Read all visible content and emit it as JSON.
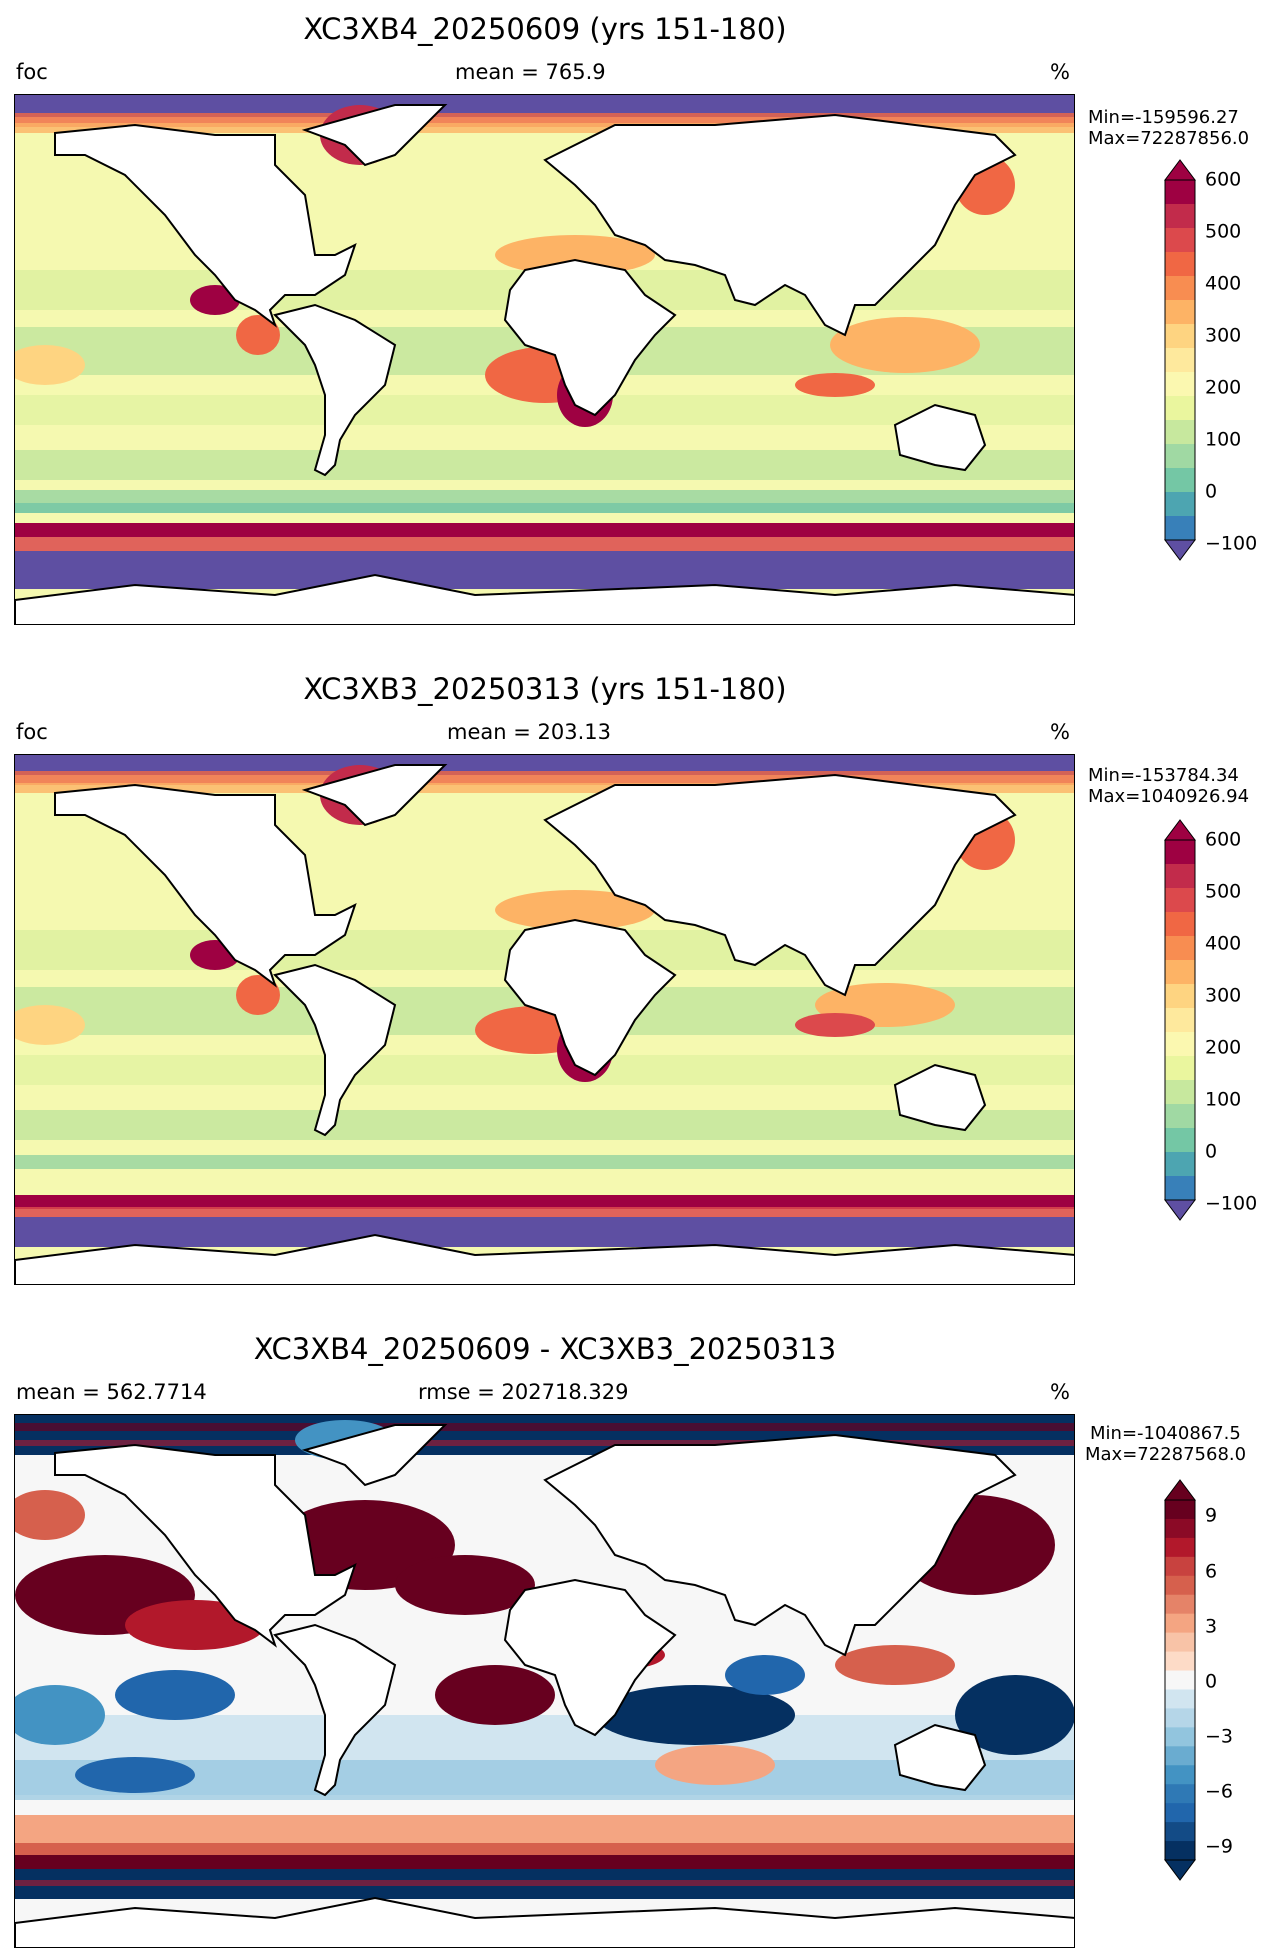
{
  "panels": [
    {
      "title": "XC3XB4_20250609 (yrs 151-180)",
      "left_label": "foc",
      "center_label": "mean = 765.9",
      "units": "%",
      "min_text": "Min=-159596.27",
      "max_text": "Max=72287856.0",
      "colorbar": {
        "ticks": [
          "600",
          "500",
          "400",
          "300",
          "200",
          "100",
          "0",
          "−100"
        ],
        "colors": [
          "#9e0142",
          "#c22b4b",
          "#dc494c",
          "#f06744",
          "#f88d51",
          "#fdb365",
          "#fed481",
          "#fee99d",
          "#fbf8b0",
          "#eaf69e",
          "#c7e89e",
          "#a0d9a3",
          "#74c7a5",
          "#4da5b1",
          "#3880b9"
        ],
        "extend_min_color": "#5e4fa2",
        "extend_max_color": "#9e0142"
      }
    },
    {
      "title": "XC3XB3_20250313 (yrs 151-180)",
      "left_label": "foc",
      "center_label": "mean = 203.13",
      "units": "%",
      "min_text": "Min=-153784.34",
      "max_text": "Max=1040926.94",
      "colorbar": {
        "ticks": [
          "600",
          "500",
          "400",
          "300",
          "200",
          "100",
          "0",
          "−100"
        ],
        "colors": [
          "#9e0142",
          "#c22b4b",
          "#dc494c",
          "#f06744",
          "#f88d51",
          "#fdb365",
          "#fed481",
          "#fee99d",
          "#fbf8b0",
          "#eaf69e",
          "#c7e89e",
          "#a0d9a3",
          "#74c7a5",
          "#4da5b1",
          "#3880b9"
        ],
        "extend_min_color": "#5e4fa2",
        "extend_max_color": "#9e0142"
      }
    },
    {
      "title": "XC3XB4_20250609 - XC3XB3_20250313",
      "left_label": "mean = 562.7714",
      "center_label": "rmse = 202718.329",
      "units": "%",
      "min_text": "Min=-1040867.5",
      "max_text": "Max=72287568.0",
      "colorbar": {
        "ticks": [
          "9",
          "6",
          "3",
          "0",
          "−3",
          "−6",
          "−9"
        ],
        "colors": [
          "#67001f",
          "#8b0a26",
          "#b2182b",
          "#c8423f",
          "#d6604d",
          "#e58368",
          "#f4a582",
          "#f8c3a7",
          "#fddbc7",
          "#f7f7f7",
          "#d1e5f0",
          "#b5d6e8",
          "#92c5de",
          "#6aacd0",
          "#4393c3",
          "#2f79b5",
          "#2166ac",
          "#134b86",
          "#053061"
        ],
        "extend_min_color": "#053061",
        "extend_max_color": "#67001f"
      }
    }
  ]
}
